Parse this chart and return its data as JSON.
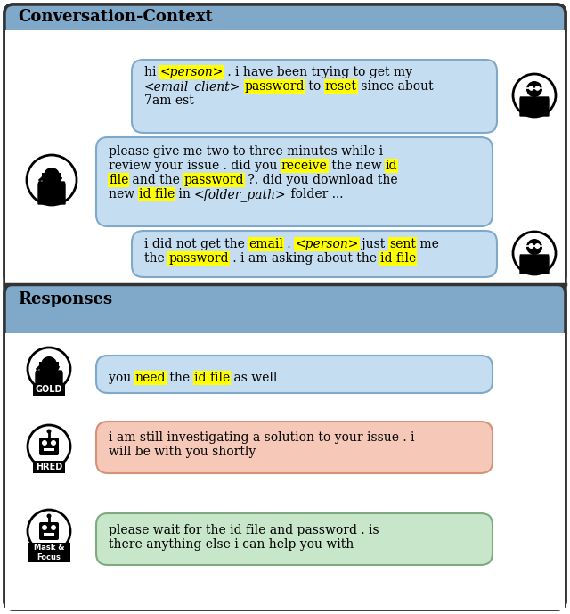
{
  "title_context": "Conversation-Context",
  "title_responses": "Responses",
  "bg_color": "#ffffff",
  "header_color": "#7fa8c9",
  "bubble_blue": "#c5ddf0",
  "bubble_red": "#f5c8b8",
  "bubble_green": "#c8e6c9",
  "highlight_yellow": "#ffff00",
  "hred_text_line1": "i am still investigating a solution to your issue . i",
  "hred_text_line2": "will be with you shortly",
  "maskfocus_text_line1": "please wait for the id file and password . is",
  "maskfocus_text_line2": "there anything else i can help you with",
  "fs": 10.0,
  "fs_title": 13.0,
  "fs_label": 7.0
}
